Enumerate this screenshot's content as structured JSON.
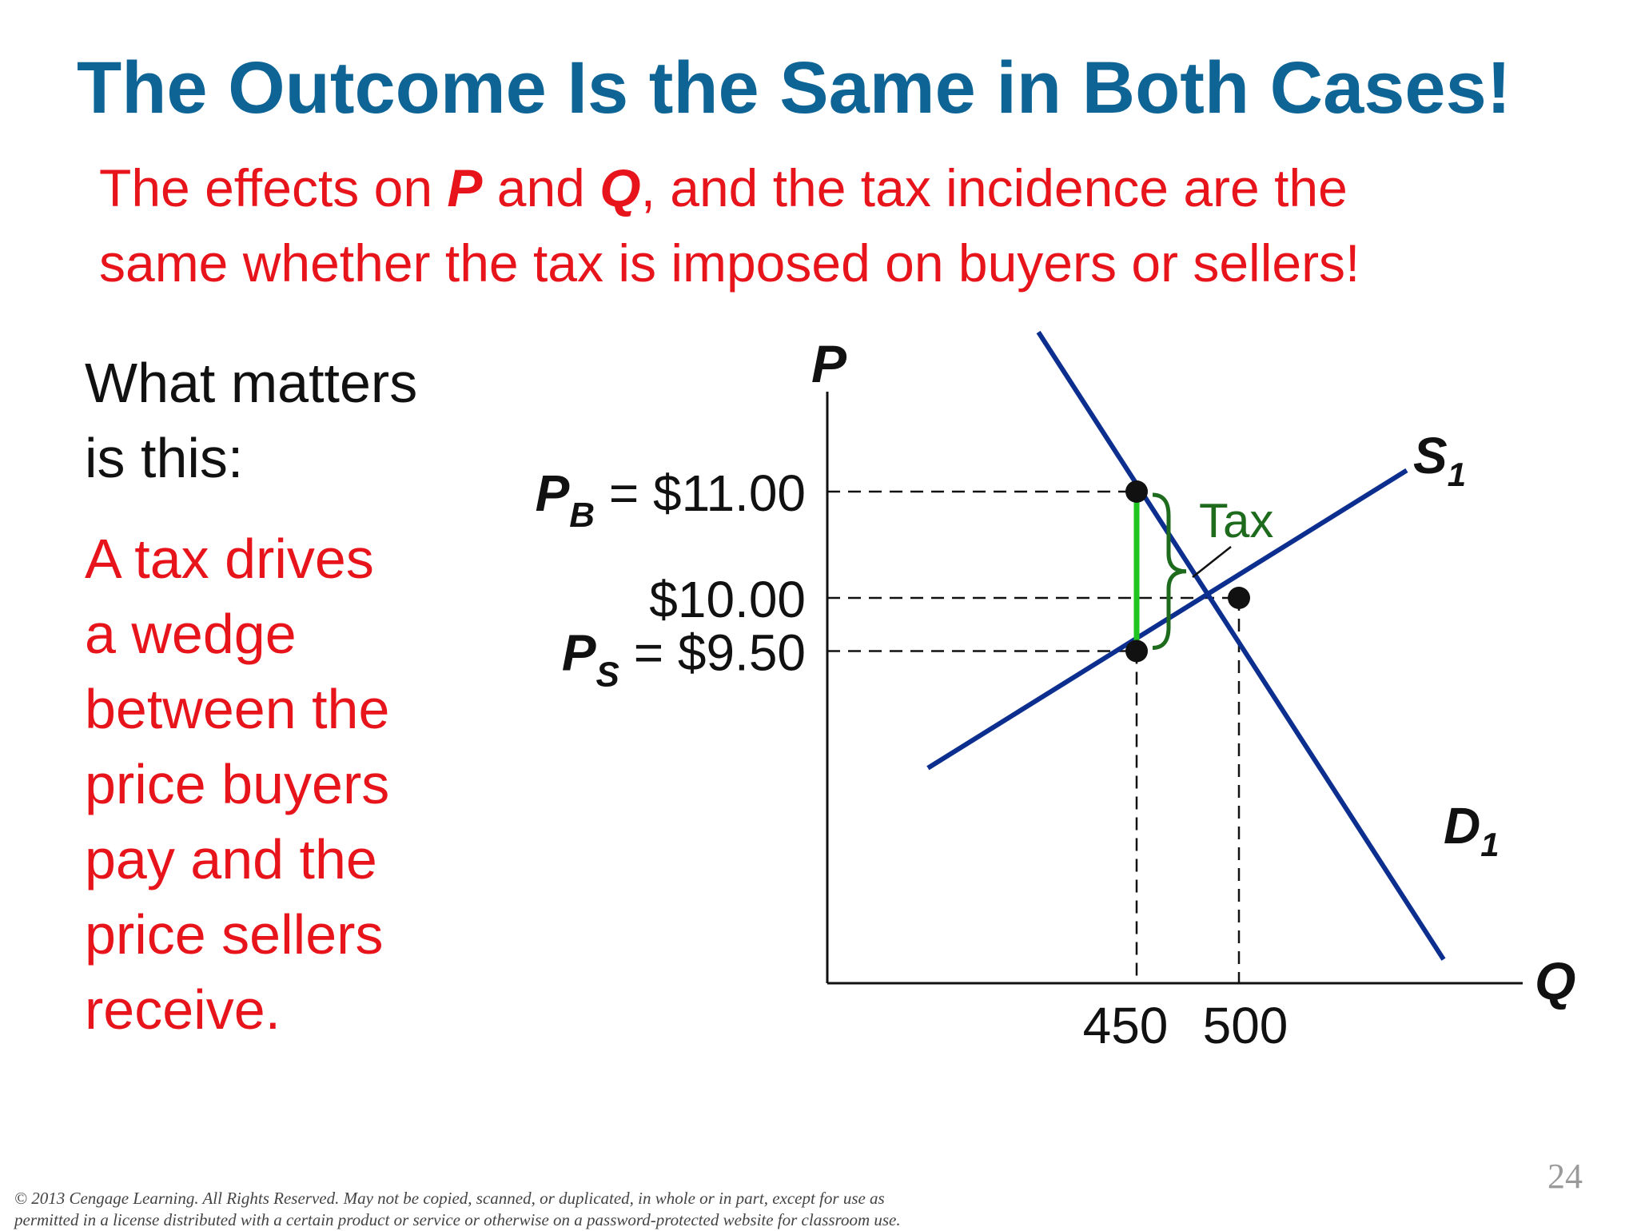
{
  "slide": {
    "title": "The Outcome Is the Same in Both Cases!",
    "subtitle": {
      "part1": "The effects on ",
      "p": "P",
      "part2": " and ",
      "q": "Q",
      "part3": ", and the tax incidence are the",
      "line2": "same whether the tax is imposed on buyers or sellers!"
    },
    "left_text": {
      "line1": "What matters",
      "line2": "is this:",
      "red_lines": [
        "A tax drives",
        "a wedge",
        "between the",
        "price buyers",
        "pay and the",
        "price sellers",
        "receive."
      ]
    },
    "footer": {
      "line1": "© 2013 Cengage Learning. All Rights Reserved. May not be copied, scanned, or duplicated, in whole or in part, except for use as",
      "line2": "permitted in a license distributed with a certain product or service or otherwise on a password-protected website for classroom use."
    },
    "page_number": "24"
  },
  "chart_data": {
    "type": "line",
    "axes": {
      "y_label": "P",
      "x_label": "Q"
    },
    "price_labels": [
      {
        "prefix": "P",
        "sub": "B",
        "text": " = $11.00",
        "value": 11.0
      },
      {
        "prefix": "",
        "sub": "",
        "text": "$10.00",
        "value": 10.0
      },
      {
        "prefix": "P",
        "sub": "S",
        "text": " = $9.50",
        "value": 9.5
      }
    ],
    "quantity_labels": [
      {
        "text": "450",
        "value": 450
      },
      {
        "text": "500",
        "value": 500
      }
    ],
    "series": [
      {
        "name": "S1",
        "label_main": "S",
        "label_sub": "1",
        "points": [
          [
            348,
            8.4
          ],
          [
            582,
            11.2
          ]
        ],
        "color": "#0c2f8f"
      },
      {
        "name": "D1",
        "label_main": "D",
        "label_sub": "1",
        "points": [
          [
            402,
            12.5
          ],
          [
            600,
            6.6
          ]
        ],
        "color": "#0c2f8f"
      }
    ],
    "equilibrium": {
      "q": 500,
      "p": 10.0
    },
    "tax_points": [
      {
        "q": 450,
        "p": 11.0
      },
      {
        "q": 450,
        "p": 9.5
      }
    ],
    "tax_label": "Tax",
    "wedge_color": "#1fc41f",
    "brace_color": "#1e6b1e"
  }
}
